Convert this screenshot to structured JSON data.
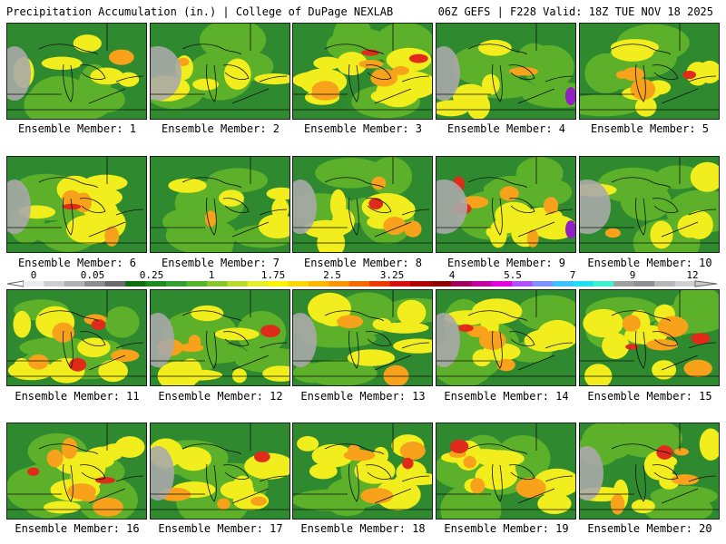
{
  "header": {
    "left": "Precipitation Accumulation (in.) | College of DuPage NEXLAB",
    "right": "06Z GEFS | F228 Valid: 18Z TUE NOV 18 2025"
  },
  "members": [
    "Ensemble Member: 1",
    "Ensemble Member: 2",
    "Ensemble Member: 3",
    "Ensemble Member: 4",
    "Ensemble Member: 5",
    "Ensemble Member: 6",
    "Ensemble Member: 7",
    "Ensemble Member: 8",
    "Ensemble Member: 9",
    "Ensemble Member: 10",
    "Ensemble Member: 11",
    "Ensemble Member: 12",
    "Ensemble Member: 13",
    "Ensemble Member: 14",
    "Ensemble Member: 15",
    "Ensemble Member: 16",
    "Ensemble Member: 17",
    "Ensemble Member: 18",
    "Ensemble Member: 19",
    "Ensemble Member: 20"
  ],
  "colorbar": {
    "ticks": [
      "0",
      "0.05",
      "0.25",
      "1",
      "1.75",
      "2.5",
      "3.25",
      "4",
      "5.5",
      "7",
      "9",
      "12"
    ],
    "colors": [
      "#ececec",
      "#cfcfcf",
      "#b1b1b1",
      "#8d8d8d",
      "#6a6a6a",
      "#0c6f0c",
      "#1f8a1f",
      "#34a034",
      "#55b52a",
      "#86c62c",
      "#b9d92e",
      "#e6ee2a",
      "#fbf400",
      "#fdd800",
      "#fcb800",
      "#fa9300",
      "#f46b00",
      "#ea3a00",
      "#d80f0f",
      "#b00000",
      "#8c0000",
      "#a0005a",
      "#c000a0",
      "#e000e0",
      "#b050ff",
      "#8090ff",
      "#40c0ff",
      "#20e0f0",
      "#40f0d0",
      "#a0a0a0",
      "#909090",
      "#b8b8b8",
      "#d0d0d0"
    ]
  },
  "panels": [
    {
      "grey": 1,
      "wet": 1,
      "hot": 0,
      "purple": 0
    },
    {
      "grey": 2,
      "wet": 1,
      "hot": 0,
      "purple": 0
    },
    {
      "grey": 0,
      "wet": 3,
      "hot": 2,
      "purple": 0
    },
    {
      "grey": 1,
      "wet": 1,
      "hot": 0,
      "purple": 1
    },
    {
      "grey": 0,
      "wet": 2,
      "hot": 1,
      "purple": 0
    },
    {
      "grey": 1,
      "wet": 2,
      "hot": 1,
      "purple": 0
    },
    {
      "grey": 0,
      "wet": 1,
      "hot": 0,
      "purple": 0
    },
    {
      "grey": 1,
      "wet": 2,
      "hot": 1,
      "purple": 0
    },
    {
      "grey": 2,
      "wet": 2,
      "hot": 2,
      "purple": 1
    },
    {
      "grey": 2,
      "wet": 1,
      "hot": 0,
      "purple": 0
    },
    {
      "grey": 0,
      "wet": 2,
      "hot": 2,
      "purple": 0
    },
    {
      "grey": 1,
      "wet": 2,
      "hot": 1,
      "purple": 0
    },
    {
      "grey": 1,
      "wet": 2,
      "hot": 0,
      "purple": 0
    },
    {
      "grey": 1,
      "wet": 2,
      "hot": 1,
      "purple": 0
    },
    {
      "grey": 0,
      "wet": 2,
      "hot": 2,
      "purple": 0
    },
    {
      "grey": 0,
      "wet": 3,
      "hot": 2,
      "purple": 0
    },
    {
      "grey": 1,
      "wet": 2,
      "hot": 1,
      "purple": 0
    },
    {
      "grey": 0,
      "wet": 3,
      "hot": 1,
      "purple": 0
    },
    {
      "grey": 0,
      "wet": 3,
      "hot": 1,
      "purple": 0
    },
    {
      "grey": 1,
      "wet": 2,
      "hot": 1,
      "purple": 0
    }
  ],
  "palette": {
    "green_dark": "#2f8a2f",
    "green": "#5cb02a",
    "yellow": "#f2ee1e",
    "orange": "#f7a21a",
    "red": "#e02a1a",
    "grey": "#a9a9a9",
    "purple": "#9020c0"
  }
}
